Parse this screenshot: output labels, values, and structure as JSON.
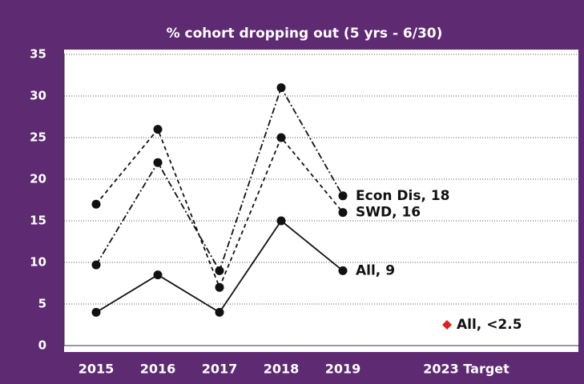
{
  "chart_data": {
    "type": "line",
    "title": "% cohort dropping  out (5 yrs - 6/30)",
    "categories": [
      "2015",
      "2016",
      "2017",
      "2018",
      "2019",
      "2023 Target"
    ],
    "series": [
      {
        "style": "dashdot",
        "color": "#111111",
        "marker": "circle",
        "values": [
          9.7,
          22,
          9,
          31,
          18,
          null
        ],
        "value_labels": [
          null,
          null,
          null,
          null,
          "Econ Dis, 18",
          null
        ]
      },
      {
        "style": "dashed",
        "color": "#111111",
        "marker": "circle",
        "values": [
          17,
          26,
          7,
          25,
          16,
          null
        ],
        "value_labels": [
          null,
          null,
          null,
          null,
          "SWD, 16",
          null
        ]
      },
      {
        "style": "solid",
        "color": "#111111",
        "marker": "circle",
        "values": [
          4,
          8.5,
          4,
          15,
          9,
          null
        ],
        "value_labels": [
          null,
          null,
          null,
          null,
          "All, 9",
          null
        ]
      },
      {
        "style": "none",
        "color": "#e02020",
        "marker": "diamond",
        "values": [
          null,
          null,
          null,
          null,
          null,
          2.5
        ],
        "value_labels": [
          null,
          null,
          null,
          null,
          null,
          "All, <2.5"
        ]
      }
    ],
    "ylim": [
      0,
      35
    ],
    "yticks": [
      0,
      5,
      10,
      15,
      20,
      25,
      30,
      35
    ],
    "grid": true
  }
}
